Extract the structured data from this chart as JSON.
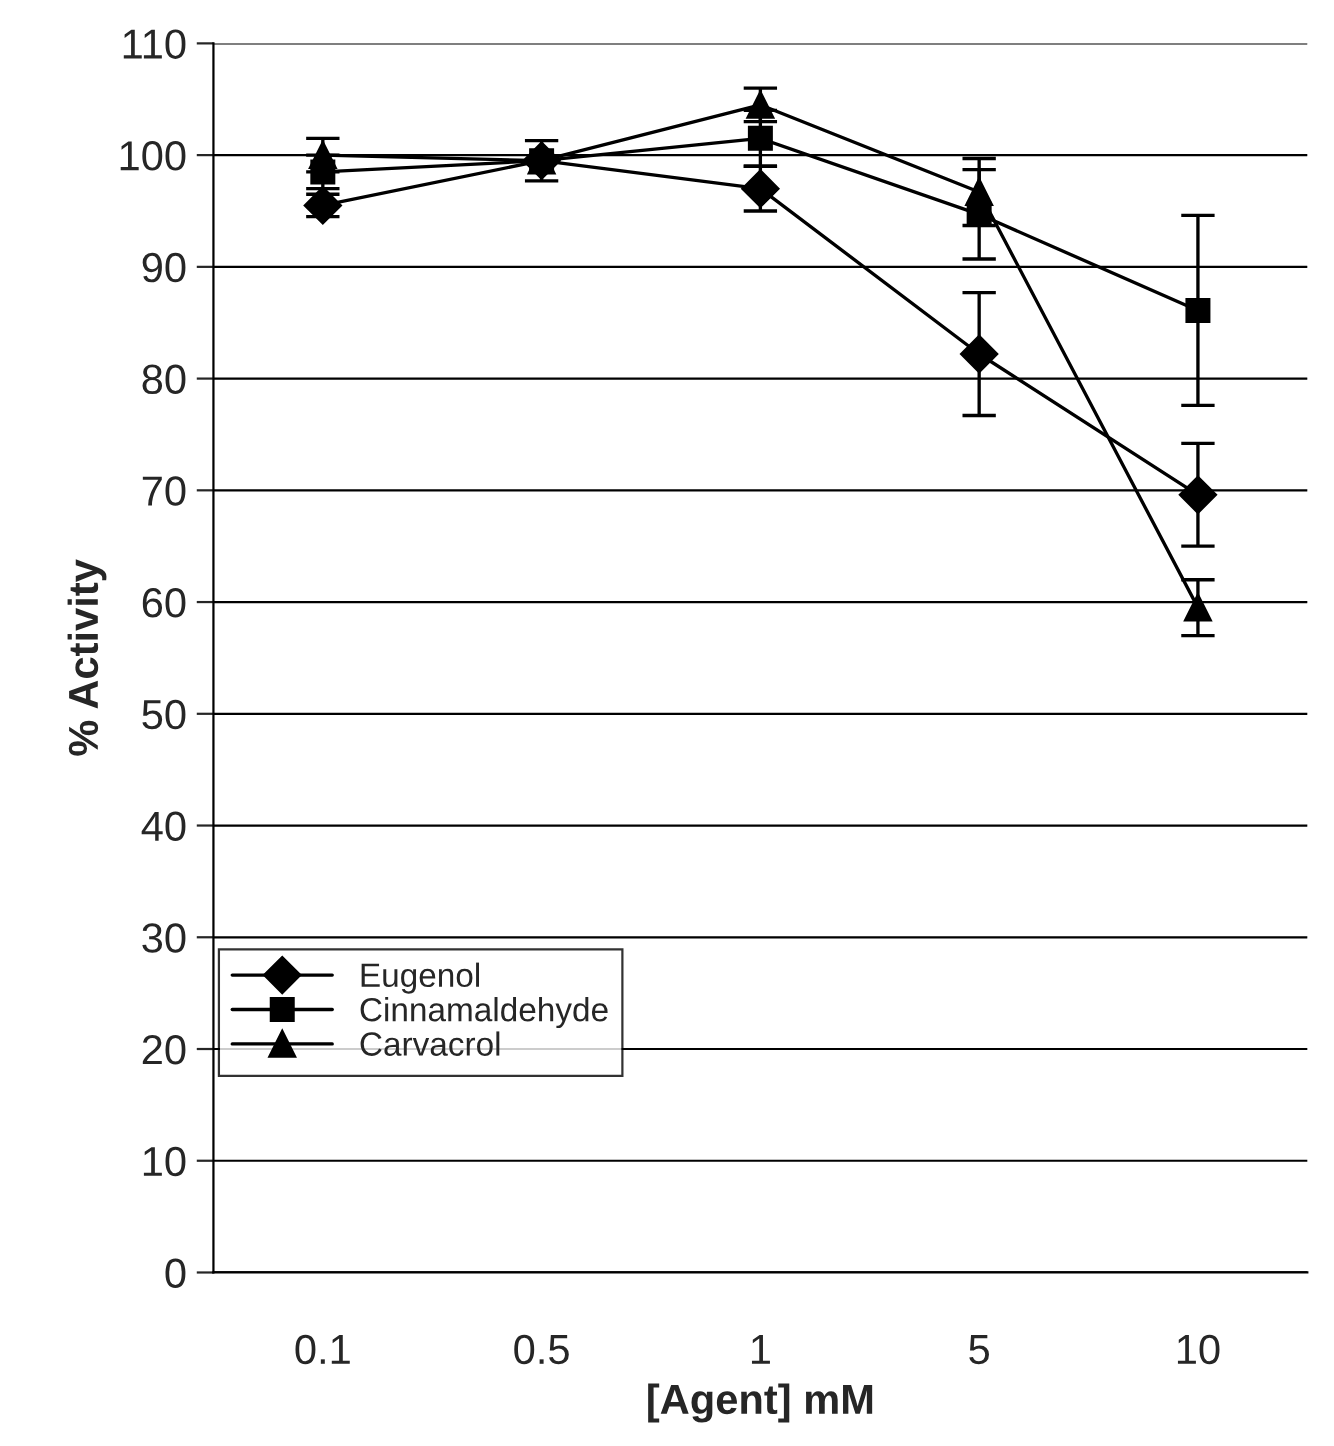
{
  "chart_data": {
    "type": "line",
    "xlabel": "[Agent] mM",
    "ylabel": "% Activity",
    "categories": [
      "0.1",
      "0.5",
      "1",
      "5",
      "10"
    ],
    "series": [
      {
        "name": "Eugenol",
        "color": "#000000",
        "marker": "diamond",
        "values": [
          95.5,
          99.5,
          97,
          82.2,
          69.6
        ],
        "errors": [
          1,
          null,
          2,
          5.5,
          4.6
        ]
      },
      {
        "name": "Cinnamaldehyde",
        "color": "#000000",
        "marker": "square",
        "values": [
          98.5,
          99.5,
          101.5,
          94.7,
          86.1
        ],
        "errors": [
          1.5,
          1.8,
          2.5,
          4,
          8.5
        ]
      },
      {
        "name": "Carvacrol",
        "color": "#000000",
        "marker": "triangle",
        "values": [
          100,
          99.5,
          104.5,
          96.7,
          59.5
        ],
        "errors": [
          1.5,
          null,
          1.5,
          3,
          2.5
        ]
      }
    ],
    "ylim": [
      0,
      110
    ],
    "yticks": [
      0,
      10,
      20,
      30,
      40,
      50,
      60,
      70,
      80,
      90,
      100,
      110
    ],
    "grid": "y",
    "legend": "bottom left",
    "line_style": "solid"
  }
}
